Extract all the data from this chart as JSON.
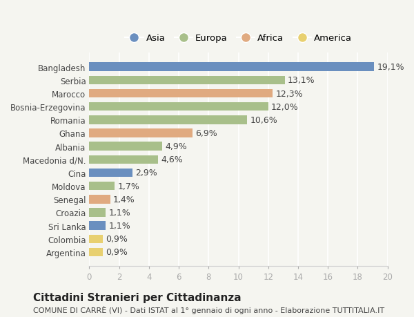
{
  "categories": [
    "Bangladesh",
    "Serbia",
    "Marocco",
    "Bosnia-Erzegovina",
    "Romania",
    "Ghana",
    "Albania",
    "Macedonia d/N.",
    "Cina",
    "Moldova",
    "Senegal",
    "Croazia",
    "Sri Lanka",
    "Colombia",
    "Argentina"
  ],
  "values": [
    19.1,
    13.1,
    12.3,
    12.0,
    10.6,
    6.9,
    4.9,
    4.6,
    2.9,
    1.7,
    1.4,
    1.1,
    1.1,
    0.9,
    0.9
  ],
  "continents": [
    "Asia",
    "Europa",
    "Africa",
    "Europa",
    "Europa",
    "Africa",
    "Europa",
    "Europa",
    "Asia",
    "Europa",
    "Africa",
    "Europa",
    "Asia",
    "America",
    "America"
  ],
  "colors": {
    "Asia": "#6a8fbf",
    "Europa": "#a8bf8a",
    "Africa": "#e0aa80",
    "America": "#e8d070"
  },
  "legend_order": [
    "Asia",
    "Europa",
    "Africa",
    "America"
  ],
  "xlim": [
    0,
    20
  ],
  "xticks": [
    0,
    2,
    4,
    6,
    8,
    10,
    12,
    14,
    16,
    18,
    20
  ],
  "title": "Cittadini Stranieri per Cittadinanza",
  "subtitle": "COMUNE DI CARRÈ (VI) - Dati ISTAT al 1° gennaio di ogni anno - Elaborazione TUTTITALIA.IT",
  "background_color": "#f5f5f0",
  "bar_height": 0.65,
  "label_fontsize": 9,
  "tick_fontsize": 8.5,
  "title_fontsize": 11,
  "subtitle_fontsize": 8
}
